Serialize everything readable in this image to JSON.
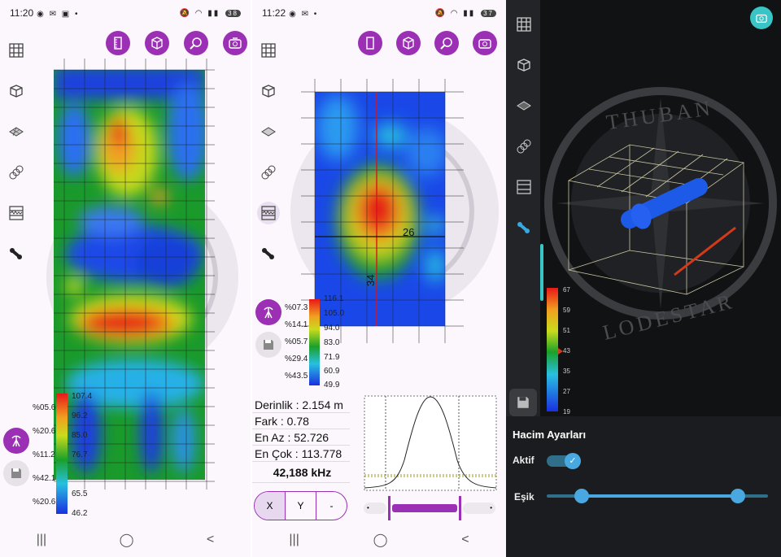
{
  "panel1": {
    "status": {
      "time": "11:20",
      "battery": "38"
    },
    "legend": {
      "percents": [
        "%05.6",
        "%20.6",
        "%11.2",
        "%42.1",
        "%20.6"
      ],
      "values": [
        "107.4",
        "96.2",
        "85.0",
        "76.7",
        "65.5",
        "46.2"
      ]
    }
  },
  "panel2": {
    "status": {
      "time": "11:22",
      "battery": "37"
    },
    "crosshair": {
      "x_label": "26",
      "y_label": "34"
    },
    "legend": {
      "percents": [
        "%07.3",
        "%14.1",
        "%05.7",
        "%29.4",
        "%43.5"
      ],
      "values": [
        "116.1",
        "105.0",
        "94.0",
        "83.0",
        "71.9",
        "60.9",
        "49.9"
      ]
    },
    "info": {
      "depth": "Derinlik : 2.154 m",
      "diff": "Fark : 0.78",
      "min": "En Az : 52.726",
      "max": "En Çok : 113.778",
      "freq": "42,188 kHz"
    },
    "axis_buttons": [
      "X",
      "Y",
      "-"
    ]
  },
  "panel3": {
    "watermark": {
      "top": "THUBAN",
      "bottom": "LODESTAR"
    },
    "legend": {
      "values": [
        "67",
        "59",
        "51",
        "43",
        "35",
        "27",
        "19"
      ]
    },
    "settings": {
      "title": "Hacim Ayarları",
      "active_label": "Aktif",
      "threshold_label": "Eşik"
    }
  },
  "colors": {
    "accent": "#9b30b4",
    "dark_bg": "#1a1c1f",
    "teal": "#39c5c5"
  }
}
